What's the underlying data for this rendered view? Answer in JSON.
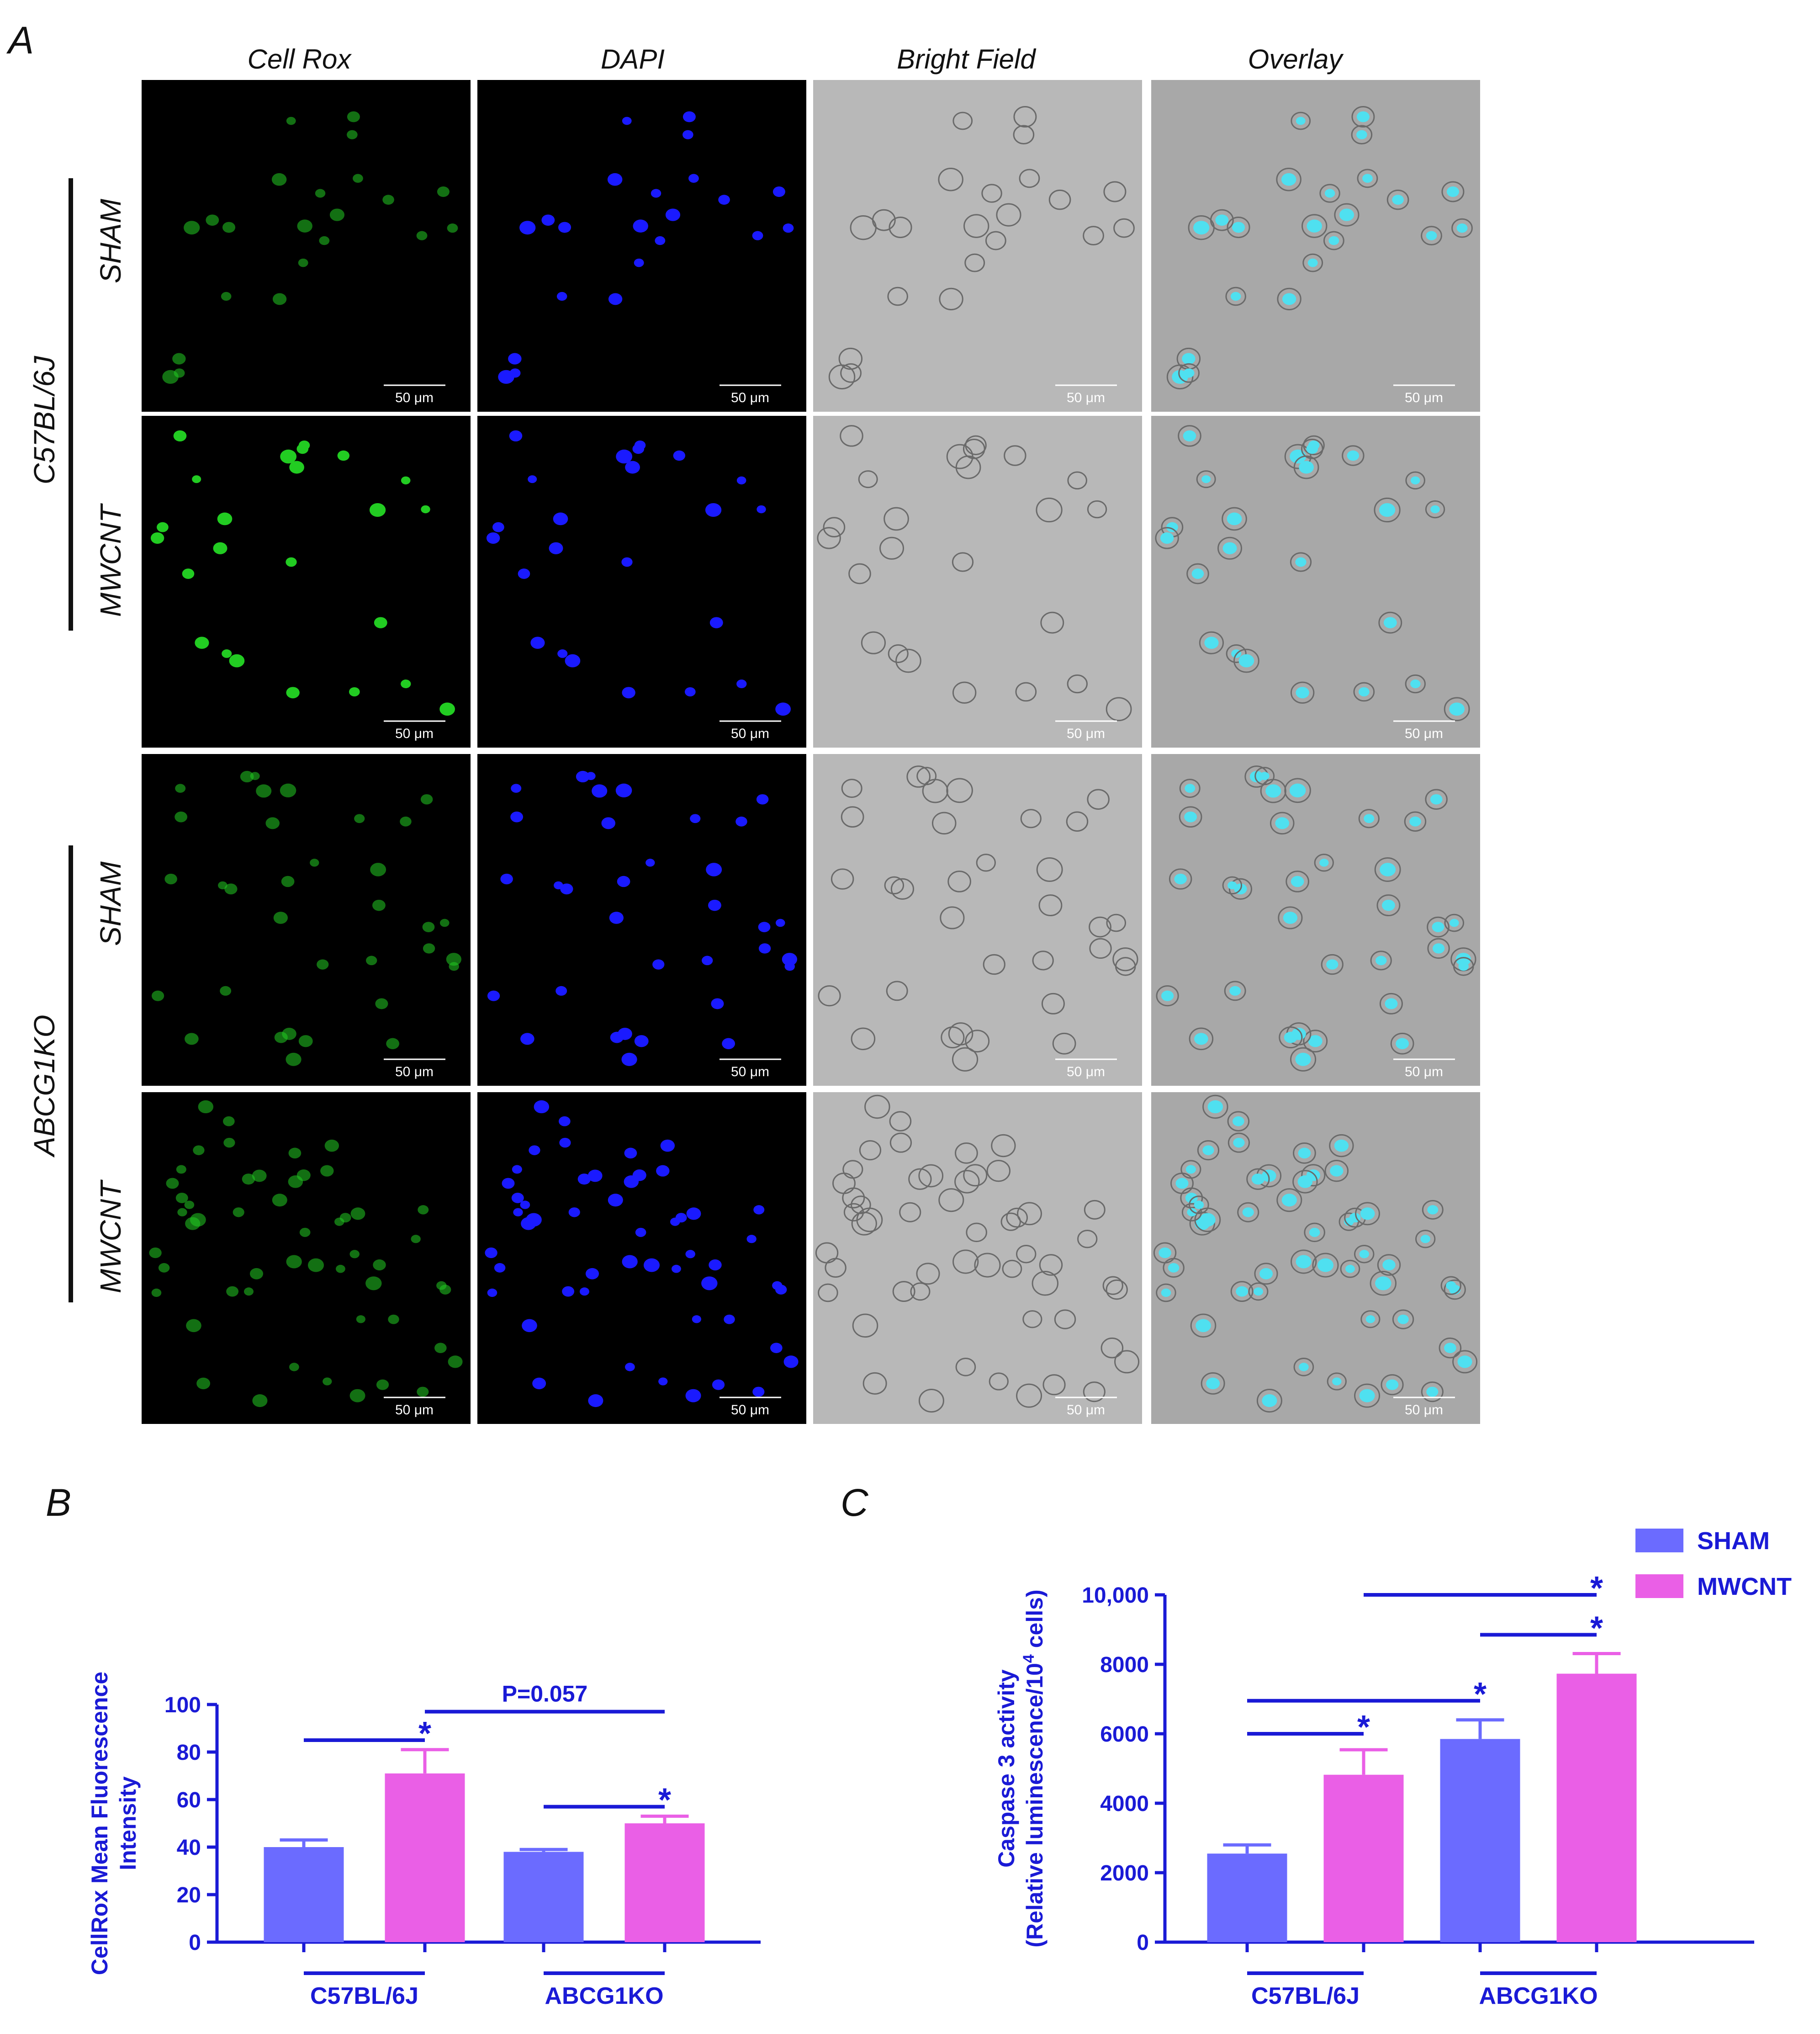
{
  "panel_a": {
    "letter": "A",
    "columns": [
      "Cell Rox",
      "DAPI",
      "Bright Field",
      "Overlay"
    ],
    "rows": [
      "SHAM",
      "MWCNT",
      "SHAM",
      "MWCNT"
    ],
    "strains": [
      "C57BL/6J",
      "ABCG1KO"
    ],
    "scale_bar": "50 μm",
    "colors": {
      "cellrox_black": "#000000",
      "cellrox_cell": "#22cc22",
      "dapi_black": "#000000",
      "dapi_cell": "#1a1aff",
      "brightfield_bg": "#b8b8b8",
      "overlay_cell": "#4fe0f0"
    }
  },
  "chart_data": [
    {
      "panel": "B",
      "type": "bar",
      "ylabel_line1": "CellRox Mean Fluorescence",
      "ylabel_line2": "Intensity",
      "ylim": [
        0,
        100
      ],
      "yticks": [
        "0",
        "20",
        "40",
        "60",
        "80",
        "100"
      ],
      "groups": [
        "C57BL/6J",
        "ABCG1KO"
      ],
      "series": [
        {
          "name": "SHAM",
          "values": [
            40,
            38
          ],
          "errors": [
            3,
            1
          ]
        },
        {
          "name": "MWCNT",
          "values": [
            71,
            50
          ],
          "errors": [
            10,
            3
          ]
        }
      ],
      "annotations": [
        {
          "text": "*",
          "type": "bracket",
          "from": [
            0,
            0
          ],
          "to": [
            0,
            1
          ],
          "y": 85
        },
        {
          "text": "*",
          "type": "bracket",
          "from": [
            1,
            0
          ],
          "to": [
            1,
            1
          ],
          "y": 57
        },
        {
          "text": "P=0.057",
          "type": "bracket",
          "from": [
            0,
            1
          ],
          "to": [
            1,
            1
          ],
          "y": 97
        }
      ]
    },
    {
      "panel": "C",
      "type": "bar",
      "ylabel_line1": "Caspase 3 activity",
      "ylabel_line2": "(Relative luminescence/10",
      "ylabel_sup": "4",
      "ylabel_tail": " cells)",
      "ylim": [
        0,
        10000
      ],
      "yticks": [
        "0",
        "2000",
        "4000",
        "6000",
        "8000",
        "10,000"
      ],
      "groups": [
        "C57BL/6J",
        "ABCG1KO"
      ],
      "series": [
        {
          "name": "SHAM",
          "values": [
            2550,
            5850
          ],
          "errors": [
            250,
            550
          ]
        },
        {
          "name": "MWCNT",
          "values": [
            4820,
            7730
          ],
          "errors": [
            720,
            580
          ]
        }
      ],
      "annotations": [
        {
          "text": "*",
          "type": "bracket",
          "from": [
            0,
            0
          ],
          "to": [
            0,
            1
          ],
          "y": 6000
        },
        {
          "text": "*",
          "type": "bracket",
          "from": [
            0,
            0
          ],
          "to": [
            1,
            0
          ],
          "y": 6950
        },
        {
          "text": "*",
          "type": "bracket",
          "from": [
            1,
            0
          ],
          "to": [
            1,
            1
          ],
          "y": 8850
        },
        {
          "text": "*",
          "type": "bracket",
          "from": [
            0,
            1
          ],
          "to": [
            1,
            1
          ],
          "y": 10000
        }
      ],
      "legend": {
        "position": "top-right",
        "items": [
          "SHAM",
          "MWCNT"
        ]
      }
    }
  ],
  "colors": {
    "sham": "#6b6bff",
    "mwcnt": "#ea5fe6",
    "axis": "#1a1ad6",
    "annot": "#1a1ad6"
  }
}
